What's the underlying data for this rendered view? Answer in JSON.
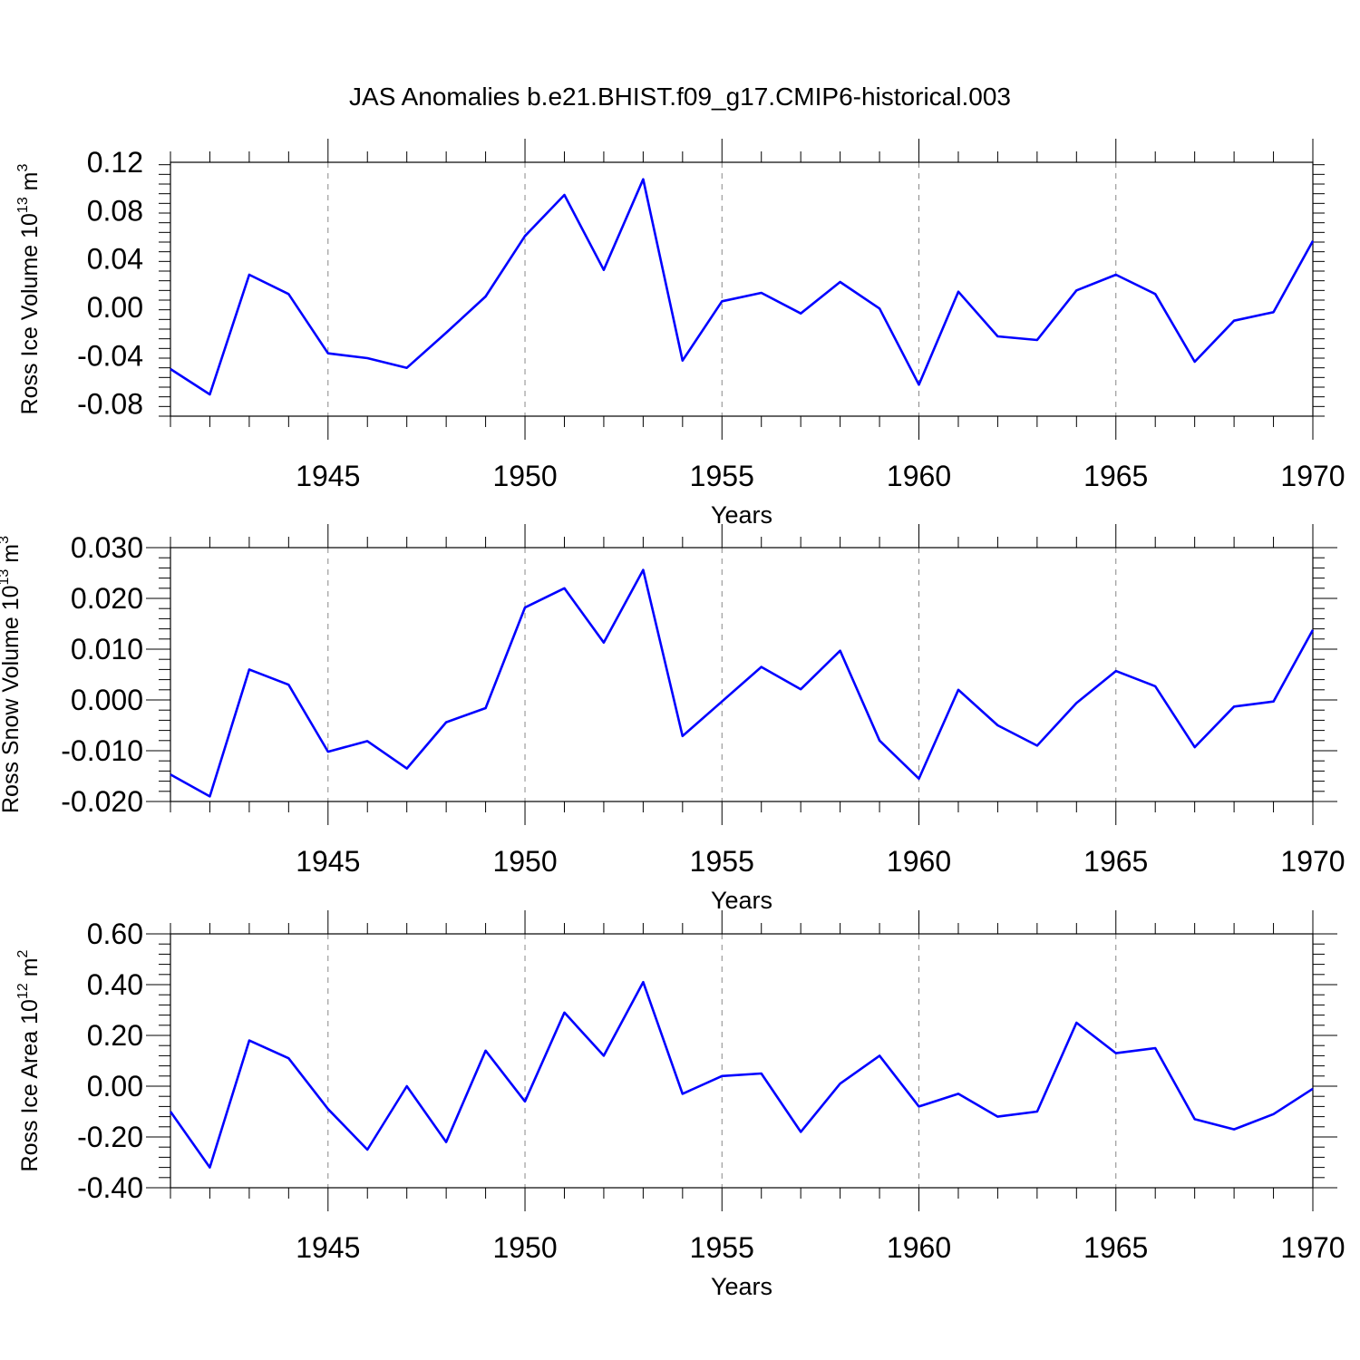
{
  "figure": {
    "title": "JAS Anomalies b.e21.BHIST.f09_g17.CMIP6-historical.003",
    "line_color": "#0000ff",
    "grid_color": "#888888"
  },
  "chart_data": [
    {
      "type": "line",
      "title": "",
      "ylabel": "Ross Ice Volume 10",
      "ylabel_exponent": "13",
      "ylabel_unit": "m",
      "ylabel_unit_exponent": "3",
      "xlabel": "Years",
      "xlim": [
        1941,
        1970
      ],
      "ylim": [
        -0.09,
        0.12
      ],
      "x_ticks": [
        1945,
        1950,
        1955,
        1960,
        1965,
        1970
      ],
      "x_tick_labels": [
        "1945",
        "1950",
        "1955",
        "1960",
        "1965",
        "1970"
      ],
      "y_ticks": [
        -0.08,
        -0.04,
        0.0,
        0.04,
        0.08,
        0.12
      ],
      "y_tick_labels": [
        "-0.08",
        "-0.04",
        "0.00",
        "0.04",
        "0.08",
        "0.12"
      ],
      "grid": "vertical dashed at major x ticks",
      "x": [
        1941,
        1942,
        1943,
        1944,
        1945,
        1946,
        1947,
        1948,
        1949,
        1950,
        1951,
        1952,
        1953,
        1954,
        1955,
        1956,
        1957,
        1958,
        1959,
        1960,
        1961,
        1962,
        1963,
        1964,
        1965,
        1966,
        1967,
        1968,
        1969,
        1970
      ],
      "series": [
        {
          "values": [
            -0.051,
            -0.072,
            0.027,
            0.011,
            -0.038,
            -0.042,
            -0.05,
            -0.021,
            0.009,
            0.059,
            0.093,
            0.031,
            0.106,
            -0.044,
            0.005,
            0.012,
            -0.005,
            0.021,
            -0.001,
            -0.064,
            0.013,
            -0.024,
            -0.027,
            0.014,
            0.027,
            0.011,
            -0.045,
            -0.011,
            -0.004,
            0.055
          ]
        }
      ]
    },
    {
      "type": "line",
      "title": "",
      "ylabel": "Ross Snow Volume 10",
      "ylabel_exponent": "13",
      "ylabel_unit": "m",
      "ylabel_unit_exponent": "3",
      "xlabel": "Years",
      "xlim": [
        1941,
        1970
      ],
      "ylim": [
        -0.02,
        0.03
      ],
      "x_ticks": [
        1945,
        1950,
        1955,
        1960,
        1965,
        1970
      ],
      "x_tick_labels": [
        "1945",
        "1950",
        "1955",
        "1960",
        "1965",
        "1970"
      ],
      "y_ticks": [
        -0.02,
        -0.01,
        0.0,
        0.01,
        0.02,
        0.03
      ],
      "y_tick_labels": [
        "-0.020",
        "-0.010",
        "0.000",
        "0.010",
        "0.020",
        "0.030"
      ],
      "grid": "vertical dashed at major x ticks",
      "x": [
        1941,
        1942,
        1943,
        1944,
        1945,
        1946,
        1947,
        1948,
        1949,
        1950,
        1951,
        1952,
        1953,
        1954,
        1955,
        1956,
        1957,
        1958,
        1959,
        1960,
        1961,
        1962,
        1963,
        1964,
        1965,
        1966,
        1967,
        1968,
        1969,
        1970
      ],
      "series": [
        {
          "values": [
            -0.0147,
            -0.019,
            0.006,
            0.003,
            -0.0102,
            -0.0081,
            -0.0135,
            -0.0044,
            -0.0016,
            0.0182,
            0.022,
            0.0113,
            0.0256,
            -0.0071,
            -0.0003,
            0.0065,
            0.0021,
            0.0097,
            -0.008,
            -0.0155,
            0.002,
            -0.005,
            -0.009,
            -0.0006,
            0.0057,
            0.0027,
            -0.0093,
            -0.0013,
            -0.0003,
            0.0138
          ]
        }
      ]
    },
    {
      "type": "line",
      "title": "",
      "ylabel": "Ross Ice Area 10",
      "ylabel_exponent": "12",
      "ylabel_unit": "m",
      "ylabel_unit_exponent": "2",
      "xlabel": "Years",
      "xlim": [
        1941,
        1970
      ],
      "ylim": [
        -0.4,
        0.6
      ],
      "x_ticks": [
        1945,
        1950,
        1955,
        1960,
        1965,
        1970
      ],
      "x_tick_labels": [
        "1945",
        "1950",
        "1955",
        "1960",
        "1965",
        "1970"
      ],
      "y_ticks": [
        -0.4,
        -0.2,
        0.0,
        0.2,
        0.4,
        0.6
      ],
      "y_tick_labels": [
        "-0.40",
        "-0.20",
        "0.00",
        "0.20",
        "0.40",
        "0.60"
      ],
      "grid": "vertical dashed at major x ticks",
      "x": [
        1941,
        1942,
        1943,
        1944,
        1945,
        1946,
        1947,
        1948,
        1949,
        1950,
        1951,
        1952,
        1953,
        1954,
        1955,
        1956,
        1957,
        1958,
        1959,
        1960,
        1961,
        1962,
        1963,
        1964,
        1965,
        1966,
        1967,
        1968,
        1969,
        1970
      ],
      "series": [
        {
          "values": [
            -0.1,
            -0.32,
            0.18,
            0.11,
            -0.09,
            -0.25,
            0.0,
            -0.22,
            0.14,
            -0.06,
            0.29,
            0.12,
            0.41,
            -0.03,
            0.04,
            0.05,
            -0.18,
            0.01,
            0.12,
            -0.08,
            -0.03,
            -0.12,
            -0.1,
            0.25,
            0.13,
            0.15,
            -0.13,
            -0.17,
            -0.11,
            -0.01
          ]
        }
      ]
    }
  ]
}
